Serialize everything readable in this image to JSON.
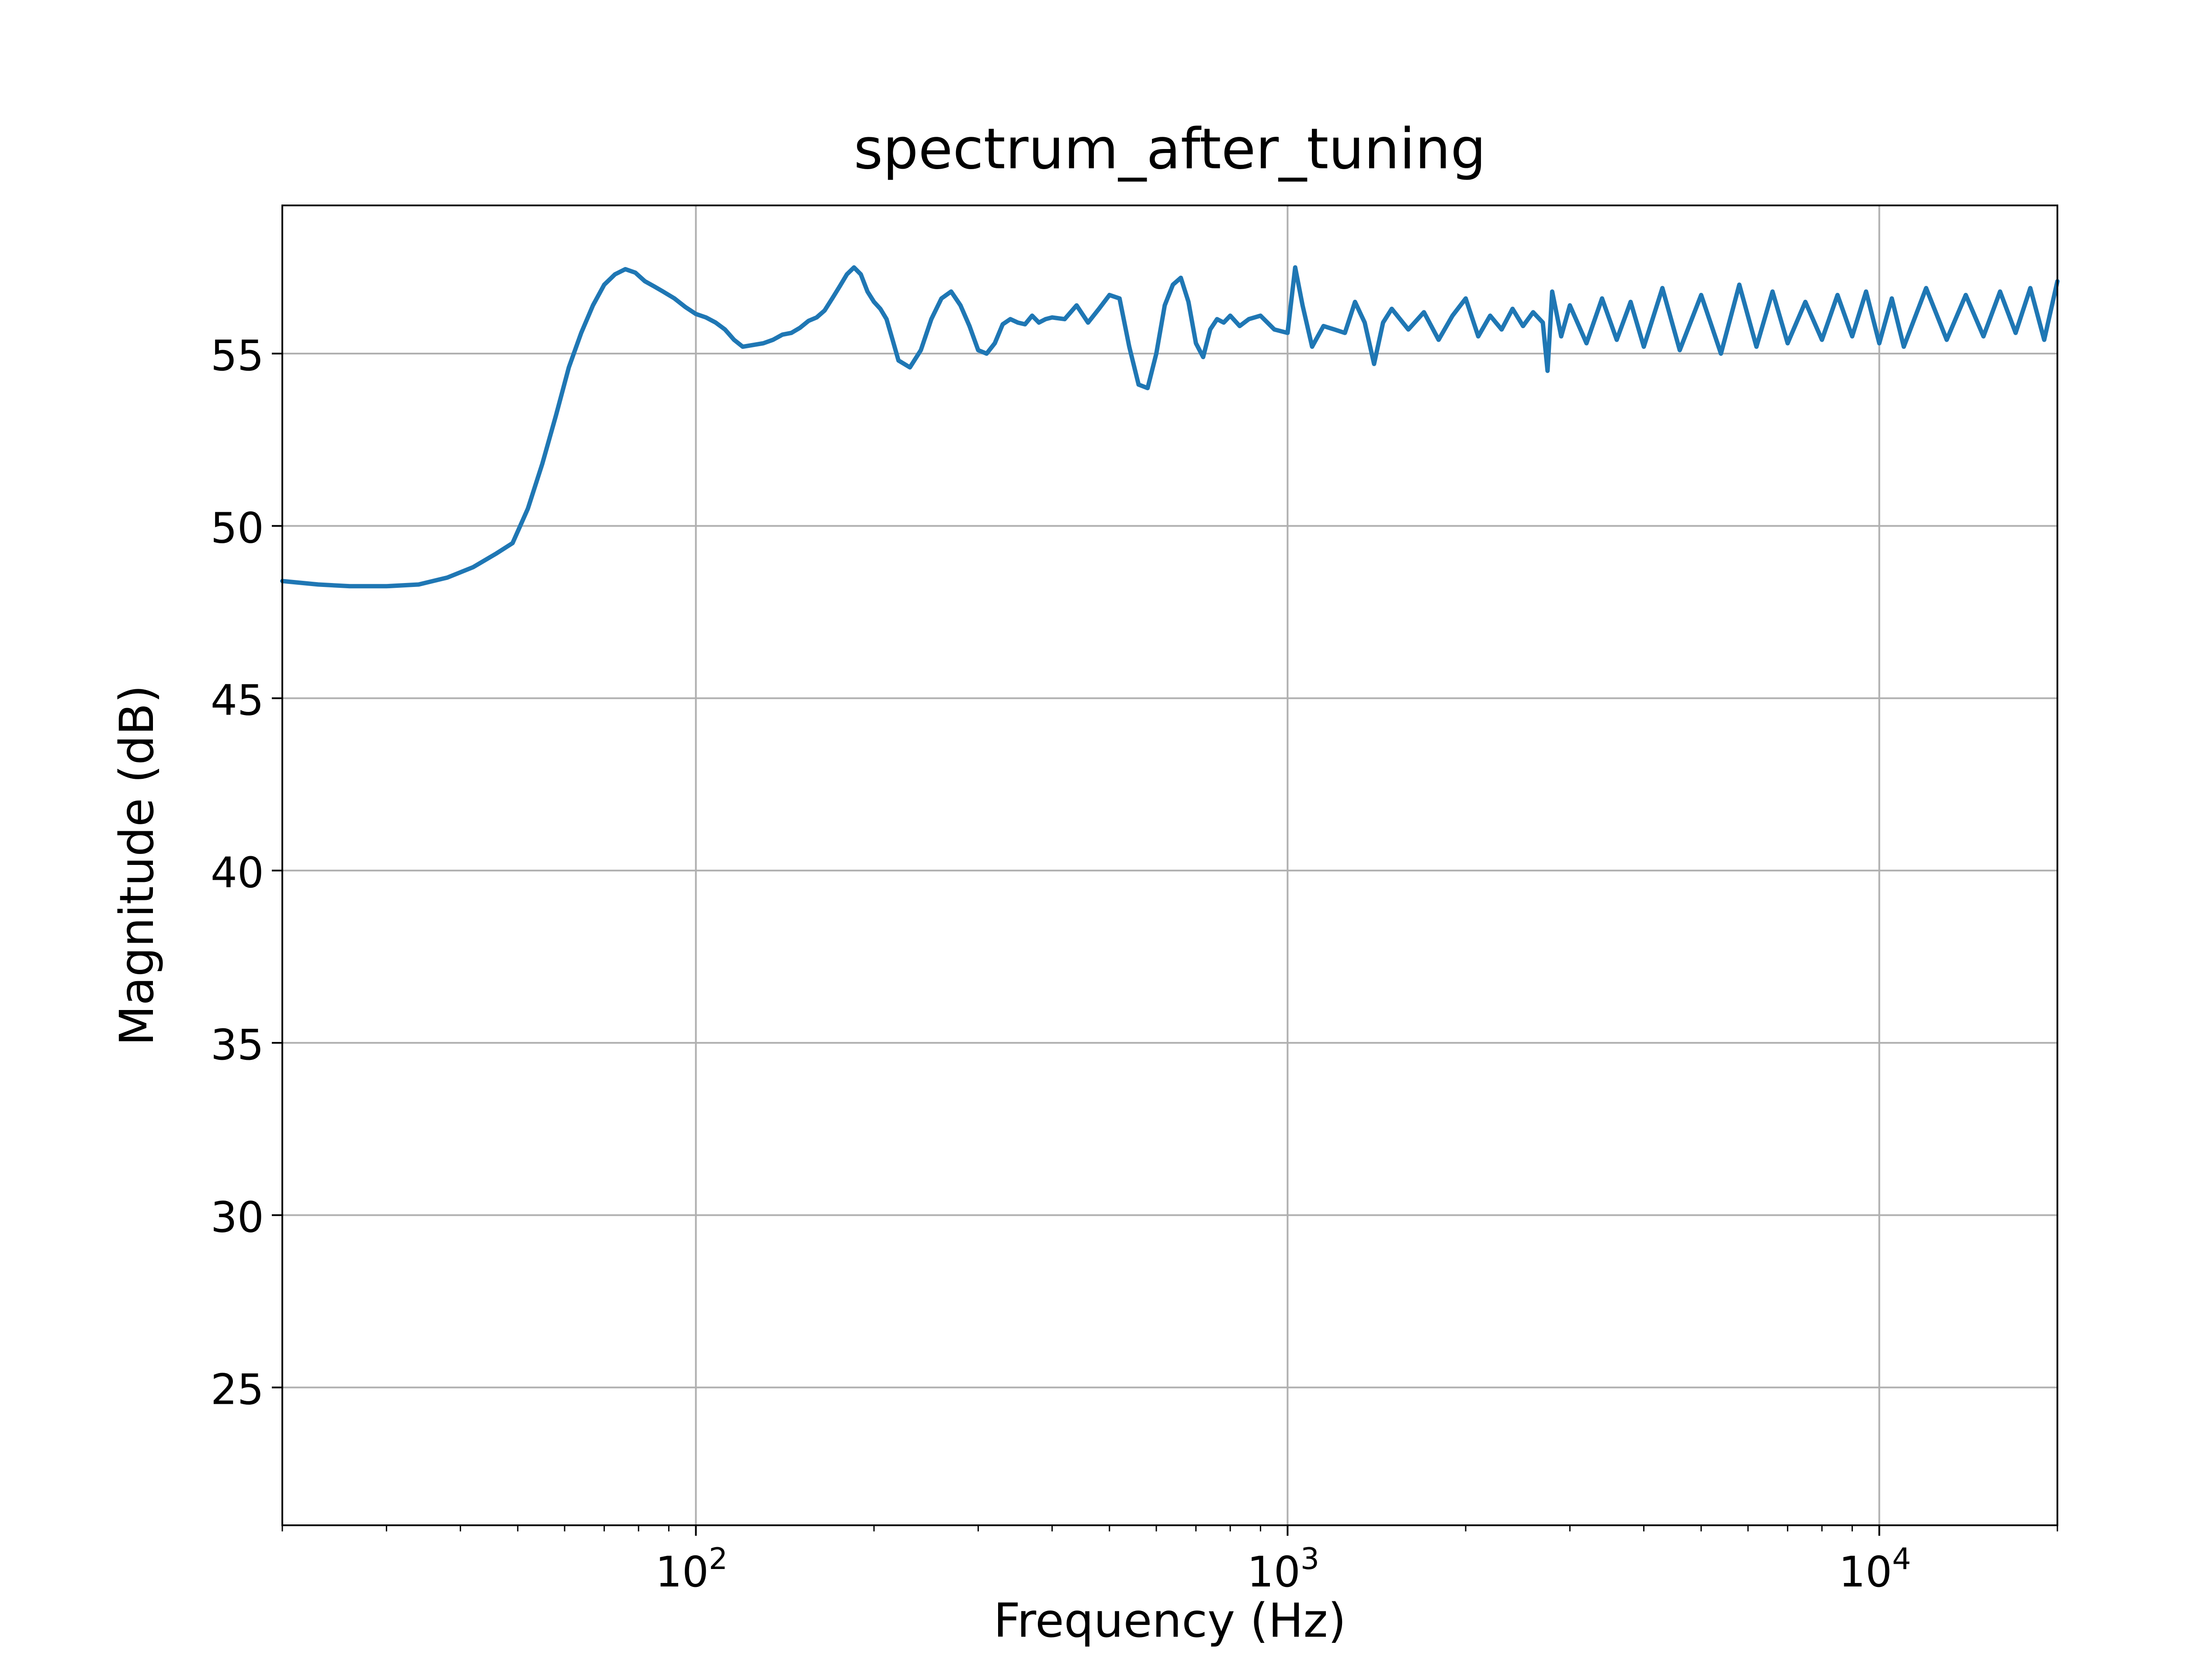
{
  "chart_data": {
    "type": "line",
    "title": "spectrum_after_tuning",
    "xlabel": "Frequency (Hz)",
    "ylabel": "Magnitude (dB)",
    "xscale": "log",
    "xlim": [
      20,
      20000
    ],
    "ylim": [
      21,
      59.3
    ],
    "grid": true,
    "x_ticks": [
      {
        "value": 100,
        "base": "10",
        "exponent": "2"
      },
      {
        "value": 1000,
        "base": "10",
        "exponent": "3"
      },
      {
        "value": 10000,
        "base": "10",
        "exponent": "4"
      }
    ],
    "y_ticks": [
      {
        "value": 25,
        "label": "25"
      },
      {
        "value": 30,
        "label": "30"
      },
      {
        "value": 35,
        "label": "35"
      },
      {
        "value": 40,
        "label": "40"
      },
      {
        "value": 45,
        "label": "45"
      },
      {
        "value": 50,
        "label": "50"
      },
      {
        "value": 55,
        "label": "55"
      }
    ],
    "series": [
      {
        "color": "#1f77b4",
        "x": [
          20,
          23,
          26,
          30,
          34,
          38,
          42,
          46,
          49,
          52,
          55,
          58,
          61,
          64,
          67,
          70,
          73,
          76,
          79,
          82,
          85,
          88,
          92,
          96,
          100,
          104,
          108,
          112,
          116,
          120,
          125,
          130,
          135,
          140,
          145,
          150,
          155,
          160,
          165,
          170,
          175,
          180,
          185,
          190,
          195,
          200,
          205,
          210,
          215,
          220,
          230,
          240,
          250,
          260,
          270,
          280,
          290,
          300,
          310,
          320,
          330,
          340,
          350,
          360,
          370,
          380,
          390,
          400,
          420,
          440,
          460,
          480,
          500,
          520,
          540,
          560,
          580,
          600,
          620,
          640,
          660,
          680,
          700,
          720,
          740,
          760,
          780,
          800,
          830,
          860,
          900,
          950,
          1000,
          1030,
          1060,
          1100,
          1150,
          1200,
          1250,
          1300,
          1350,
          1400,
          1450,
          1500,
          1600,
          1700,
          1800,
          1900,
          2000,
          2100,
          2200,
          2300,
          2400,
          2500,
          2600,
          2700,
          2750,
          2800,
          2900,
          3000,
          3200,
          3400,
          3600,
          3800,
          4000,
          4300,
          4600,
          5000,
          5400,
          5800,
          6200,
          6600,
          7000,
          7500,
          8000,
          8500,
          9000,
          9500,
          10000,
          10500,
          11000,
          12000,
          13000,
          14000,
          15000,
          16000,
          17000,
          18000,
          19000,
          20000
        ],
        "y": [
          48.4,
          48.3,
          48.25,
          48.25,
          48.3,
          48.5,
          48.8,
          49.2,
          49.5,
          50.5,
          51.8,
          53.2,
          54.6,
          55.6,
          56.4,
          57.0,
          57.3,
          57.45,
          57.35,
          57.1,
          56.95,
          56.8,
          56.6,
          56.35,
          56.15,
          56.05,
          55.9,
          55.7,
          55.4,
          55.2,
          55.25,
          55.3,
          55.4,
          55.55,
          55.6,
          55.75,
          55.95,
          56.05,
          56.25,
          56.6,
          56.95,
          57.3,
          57.5,
          57.3,
          56.8,
          56.5,
          56.3,
          56.0,
          55.4,
          54.8,
          54.6,
          55.1,
          56.0,
          56.6,
          56.8,
          56.4,
          55.8,
          55.1,
          55.0,
          55.3,
          55.85,
          56.0,
          55.9,
          55.85,
          56.1,
          55.9,
          56.0,
          56.05,
          56.0,
          56.4,
          55.9,
          56.3,
          56.7,
          56.6,
          55.2,
          54.1,
          54.0,
          55.0,
          56.4,
          57.0,
          57.2,
          56.5,
          55.3,
          54.9,
          55.7,
          56.0,
          55.9,
          56.1,
          55.8,
          56.0,
          56.1,
          55.7,
          55.6,
          57.5,
          56.4,
          55.2,
          55.8,
          55.7,
          55.6,
          56.5,
          55.9,
          54.7,
          55.9,
          56.3,
          55.7,
          56.2,
          55.4,
          56.1,
          56.6,
          55.5,
          56.1,
          55.7,
          56.3,
          55.8,
          56.2,
          55.9,
          54.5,
          56.8,
          55.5,
          56.4,
          55.3,
          56.6,
          55.4,
          56.5,
          55.2,
          56.9,
          55.1,
          56.7,
          55.0,
          57.0,
          55.2,
          56.8,
          55.3,
          56.5,
          55.4,
          56.7,
          55.5,
          56.8,
          55.3,
          56.6,
          55.2,
          56.9,
          55.4,
          56.7,
          55.5,
          56.8,
          55.6,
          56.9,
          55.4,
          57.1
        ]
      }
    ]
  }
}
